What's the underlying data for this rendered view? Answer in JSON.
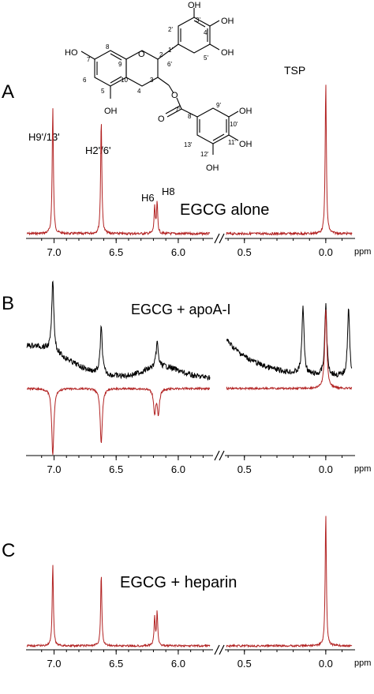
{
  "figure": {
    "panels": [
      "A",
      "B",
      "C"
    ],
    "colors": {
      "difference": "#b22222",
      "reference": "#000000",
      "axis": "#000000"
    }
  },
  "molecule": {
    "atom_labels": [
      "OH",
      "3'",
      "OH",
      "2'",
      "4'",
      "O",
      "1'",
      "8",
      "HO",
      "7",
      "9",
      "2",
      "6'",
      "5'",
      "OH",
      "6",
      "10",
      "3",
      "5",
      "4",
      "O",
      "7'",
      "9'",
      "OH",
      "OH",
      "O",
      "8'",
      "10'",
      "13'",
      "11'",
      "OH",
      "12'",
      "OH"
    ]
  },
  "chart_data": [
    {
      "type": "line",
      "panel": "A",
      "annotation": "EGCG alone",
      "peak_labels": [
        "H9'/13'",
        "H2'/6'",
        "H6",
        "H8",
        "TSP"
      ],
      "xlabel": "ppm",
      "x_ticks_left": [
        "7.0",
        "6.5",
        "6.0"
      ],
      "x_ticks_right": [
        "0.5",
        "0.0"
      ],
      "xlim_left": [
        7.2,
        5.72
      ],
      "xlim_right": [
        0.62,
        -0.18
      ],
      "axis_break": true,
      "series": [
        {
          "color": "#b22222",
          "peaks": [
            {
              "x": 7.01,
              "y": 0.83
            },
            {
              "x": 6.62,
              "y": 0.75
            },
            {
              "x": 6.19,
              "y": 0.17
            },
            {
              "x": 6.17,
              "y": 0.2
            },
            {
              "x": 0.0,
              "y": 1.0
            }
          ]
        }
      ]
    },
    {
      "type": "line",
      "panel": "B",
      "annotation": "EGCG + apoA-I",
      "xlabel": "ppm",
      "x_ticks_left": [
        "7.0",
        "6.5",
        "6.0"
      ],
      "x_ticks_right": [
        "0.5",
        "0.0"
      ],
      "xlim_left": [
        7.2,
        5.72
      ],
      "xlim_right": [
        0.62,
        -0.18
      ],
      "axis_break": true,
      "series": [
        {
          "color": "#000000",
          "trace": "upper",
          "peaks": [
            {
              "x": 7.01,
              "y": 1.0
            },
            {
              "x": 6.62,
              "y": 0.65
            },
            {
              "x": 6.17,
              "y": 0.35
            },
            {
              "x": 0.14,
              "y": 0.95
            },
            {
              "x": 0.0,
              "y": 1.0
            },
            {
              "x": -0.14,
              "y": 0.95
            }
          ]
        },
        {
          "color": "#b22222",
          "trace": "lower",
          "peaks": [
            {
              "x": 7.01,
              "y": -0.85
            },
            {
              "x": 6.62,
              "y": -0.7
            },
            {
              "x": 6.19,
              "y": -0.3
            },
            {
              "x": 6.16,
              "y": -0.32
            },
            {
              "x": 0.0,
              "y": 1.0
            }
          ]
        }
      ]
    },
    {
      "type": "line",
      "panel": "C",
      "annotation": "EGCG + heparin",
      "xlabel": "ppm",
      "x_ticks_left": [
        "7.0",
        "6.5",
        "6.0"
      ],
      "x_ticks_right": [
        "0.5",
        "0.0"
      ],
      "xlim_left": [
        7.2,
        5.72
      ],
      "xlim_right": [
        0.62,
        -0.18
      ],
      "axis_break": true,
      "series": [
        {
          "color": "#b22222",
          "peaks": [
            {
              "x": 7.01,
              "y": 0.61
            },
            {
              "x": 6.62,
              "y": 0.54
            },
            {
              "x": 6.19,
              "y": 0.21
            },
            {
              "x": 6.17,
              "y": 0.25
            },
            {
              "x": 0.0,
              "y": 1.0
            }
          ]
        }
      ]
    }
  ]
}
